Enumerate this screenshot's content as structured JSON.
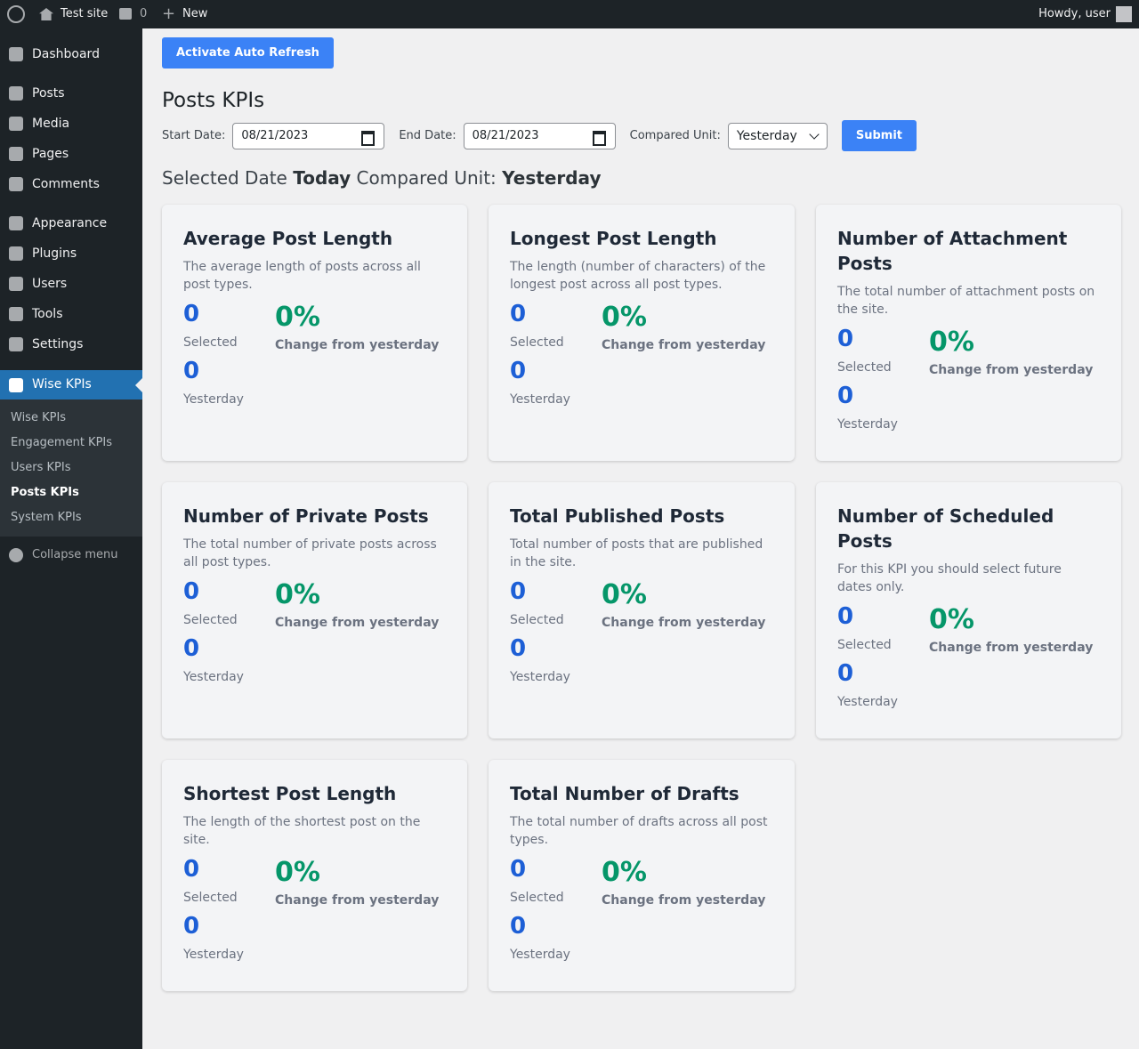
{
  "admin_bar": {
    "site_name": "Test site",
    "comments": "0",
    "new": "New",
    "howdy": "Howdy, user"
  },
  "menu": {
    "items": [
      "Dashboard",
      "Posts",
      "Media",
      "Pages",
      "Comments",
      "Appearance",
      "Plugins",
      "Users",
      "Tools",
      "Settings",
      "Wise KPIs"
    ],
    "submenu": [
      "Wise KPIs",
      "Engagement KPIs",
      "Users KPIs",
      "Posts KPIs",
      "System KPIs"
    ],
    "collapse": "Collapse menu"
  },
  "content": {
    "refresh_button": "Activate Auto Refresh",
    "title": "Posts KPIs",
    "filters": {
      "start_label": "Start Date:",
      "start_value": "08/21/2023",
      "end_label": "End Date:",
      "end_value": "08/21/2023",
      "unit_label": "Compared Unit:",
      "unit_value": "Yesterday",
      "submit": "Submit"
    },
    "summary": {
      "date_label": "Selected Date",
      "date_value": "Today",
      "unit_label": "Compared Unit:",
      "unit_value": "Yesterday"
    },
    "cards": [
      {
        "title": "Average Post Length",
        "description": "The average length of posts across all post types.",
        "selected": "0",
        "selected_label": "Selected",
        "previous": "0",
        "previous_label": "Yesterday",
        "change": "0%",
        "change_label": "Change from yesterday"
      },
      {
        "title": "Longest Post Length",
        "description": "The length (number of characters) of the longest post across all post types.",
        "selected": "0",
        "selected_label": "Selected",
        "previous": "0",
        "previous_label": "Yesterday",
        "change": "0%",
        "change_label": "Change from yesterday"
      },
      {
        "title": "Number of Attachment Posts",
        "description": "The total number of attachment posts on the site.",
        "selected": "0",
        "selected_label": "Selected",
        "previous": "0",
        "previous_label": "Yesterday",
        "change": "0%",
        "change_label": "Change from yesterday"
      },
      {
        "title": "Number of Private Posts",
        "description": "The total number of private posts across all post types.",
        "selected": "0",
        "selected_label": "Selected",
        "previous": "0",
        "previous_label": "Yesterday",
        "change": "0%",
        "change_label": "Change from yesterday"
      },
      {
        "title": "Total Published Posts",
        "description": "Total number of posts that are published in the site.",
        "selected": "0",
        "selected_label": "Selected",
        "previous": "0",
        "previous_label": "Yesterday",
        "change": "0%",
        "change_label": "Change from yesterday"
      },
      {
        "title": "Number of Scheduled Posts",
        "description": "For this KPI you should select future dates only.",
        "selected": "0",
        "selected_label": "Selected",
        "previous": "0",
        "previous_label": "Yesterday",
        "change": "0%",
        "change_label": "Change from yesterday"
      },
      {
        "title": "Shortest Post Length",
        "description": "The length of the shortest post on the site.",
        "selected": "0",
        "selected_label": "Selected",
        "previous": "0",
        "previous_label": "Yesterday",
        "change": "0%",
        "change_label": "Change from yesterday"
      },
      {
        "title": "Total Number of Drafts",
        "description": "The total number of drafts across all post types.",
        "selected": "0",
        "selected_label": "Selected",
        "previous": "0",
        "previous_label": "Yesterday",
        "change": "0%",
        "change_label": "Change from yesterday"
      }
    ]
  }
}
